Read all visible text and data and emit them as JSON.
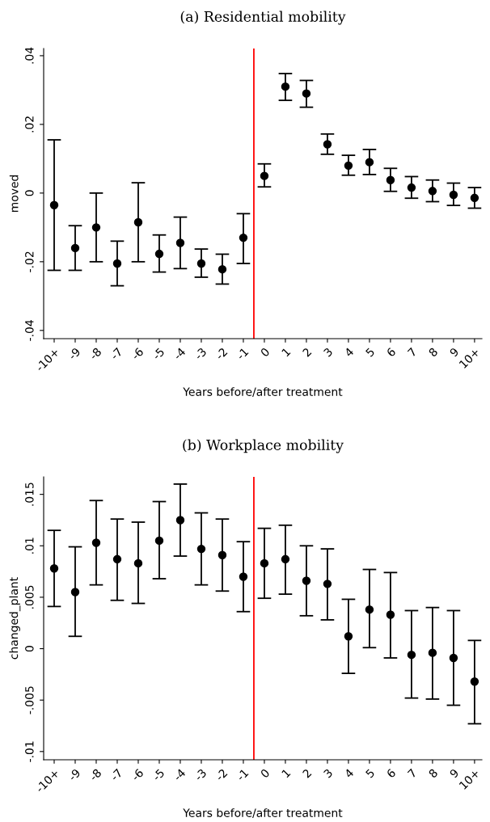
{
  "chart_data": [
    {
      "type": "scatter",
      "title": "(a) Residential mobility",
      "xlabel": "Years before/after treatment",
      "ylabel": "moved",
      "categories": [
        "-10+",
        "-9",
        "-8",
        "-7",
        "-6",
        "-5",
        "-4",
        "-3",
        "-2",
        "-1",
        "0",
        "1",
        "2",
        "3",
        "4",
        "5",
        "6",
        "7",
        "8",
        "9",
        "10+"
      ],
      "series": [
        {
          "color": "#000000",
          "values": [
            -0.0035,
            -0.016,
            -0.01,
            -0.0205,
            -0.0085,
            -0.0177,
            -0.0145,
            -0.0205,
            -0.0222,
            -0.013,
            0.005,
            0.031,
            0.029,
            0.0142,
            0.008,
            0.009,
            0.0038,
            0.0016,
            0.0006,
            -0.0005,
            -0.0014
          ],
          "errors": [
            [
              -0.0225,
              0.0155
            ],
            [
              -0.0225,
              -0.0095
            ],
            [
              -0.02,
              0.0
            ],
            [
              -0.027,
              -0.014
            ],
            [
              -0.02,
              0.003
            ],
            [
              -0.023,
              -0.0122
            ],
            [
              -0.022,
              -0.007
            ],
            [
              -0.0245,
              -0.0163
            ],
            [
              -0.0265,
              -0.0178
            ],
            [
              -0.0205,
              -0.006
            ],
            [
              0.0018,
              0.0085
            ],
            [
              0.027,
              0.0348
            ],
            [
              0.025,
              0.0328
            ],
            [
              0.0113,
              0.0172
            ],
            [
              0.0052,
              0.011
            ],
            [
              0.0054,
              0.0127
            ],
            [
              0.0005,
              0.0072
            ],
            [
              -0.0015,
              0.0048
            ],
            [
              -0.0025,
              0.0038
            ],
            [
              -0.0036,
              0.0029
            ],
            [
              -0.0044,
              0.0016
            ]
          ]
        }
      ],
      "ylim": [
        -0.0424,
        0.0421
      ],
      "yticks": [
        {
          "value": -0.04,
          "label": "-.04"
        },
        {
          "value": -0.02,
          "label": "-.02"
        },
        0,
        {
          "value": 0.02,
          "label": ".02"
        },
        {
          "value": 0.04,
          "label": ".04"
        }
      ],
      "ref_lines": [
        {
          "axis": "x",
          "value": "0",
          "color": "#ff0000"
        }
      ],
      "marker": "circle",
      "grid": false,
      "legend": false
    },
    {
      "type": "scatter",
      "title": "(b) Workplace mobility",
      "xlabel": "Years before/after treatment",
      "ylabel": "changed_plant",
      "categories": [
        "-10+",
        "-9",
        "-8",
        "-7",
        "-6",
        "-5",
        "-4",
        "-3",
        "-2",
        "-1",
        "0",
        "1",
        "2",
        "3",
        "4",
        "5",
        "6",
        "7",
        "8",
        "9",
        "10+"
      ],
      "series": [
        {
          "color": "#000000",
          "values": [
            0.0078,
            0.0055,
            0.0103,
            0.0087,
            0.0083,
            0.0105,
            0.0125,
            0.0097,
            0.0091,
            0.007,
            0.0083,
            0.0087,
            0.0066,
            0.0063,
            0.0012,
            0.0038,
            0.0033,
            -0.0006,
            -0.0004,
            -0.0009,
            -0.0032
          ],
          "errors": [
            [
              0.0041,
              0.0115
            ],
            [
              0.0012,
              0.0099
            ],
            [
              0.0062,
              0.0144
            ],
            [
              0.0047,
              0.0126
            ],
            [
              0.0044,
              0.0123
            ],
            [
              0.0068,
              0.0143
            ],
            [
              0.009,
              0.016
            ],
            [
              0.0062,
              0.0132
            ],
            [
              0.0056,
              0.0126
            ],
            [
              0.0036,
              0.0104
            ],
            [
              0.0049,
              0.0117
            ],
            [
              0.0053,
              0.012
            ],
            [
              0.0032,
              0.01
            ],
            [
              0.0028,
              0.0097
            ],
            [
              -0.0024,
              0.0048
            ],
            [
              0.0001,
              0.0077
            ],
            [
              -0.0009,
              0.0074
            ],
            [
              -0.0048,
              0.0037
            ],
            [
              -0.0049,
              0.004
            ],
            [
              -0.0055,
              0.0037
            ],
            [
              -0.0073,
              0.0008
            ]
          ]
        }
      ],
      "ylim": [
        -0.0108,
        0.0167
      ],
      "yticks": [
        {
          "value": -0.01,
          "label": "-.01"
        },
        {
          "value": -0.005,
          "label": "-.005"
        },
        0,
        {
          "value": 0.005,
          "label": ".005"
        },
        {
          "value": 0.01,
          "label": ".01"
        },
        {
          "value": 0.015,
          "label": ".015"
        }
      ],
      "ref_lines": [
        {
          "axis": "x",
          "value": "0",
          "color": "#ff0000"
        }
      ],
      "marker": "circle",
      "grid": false,
      "legend": false
    }
  ]
}
